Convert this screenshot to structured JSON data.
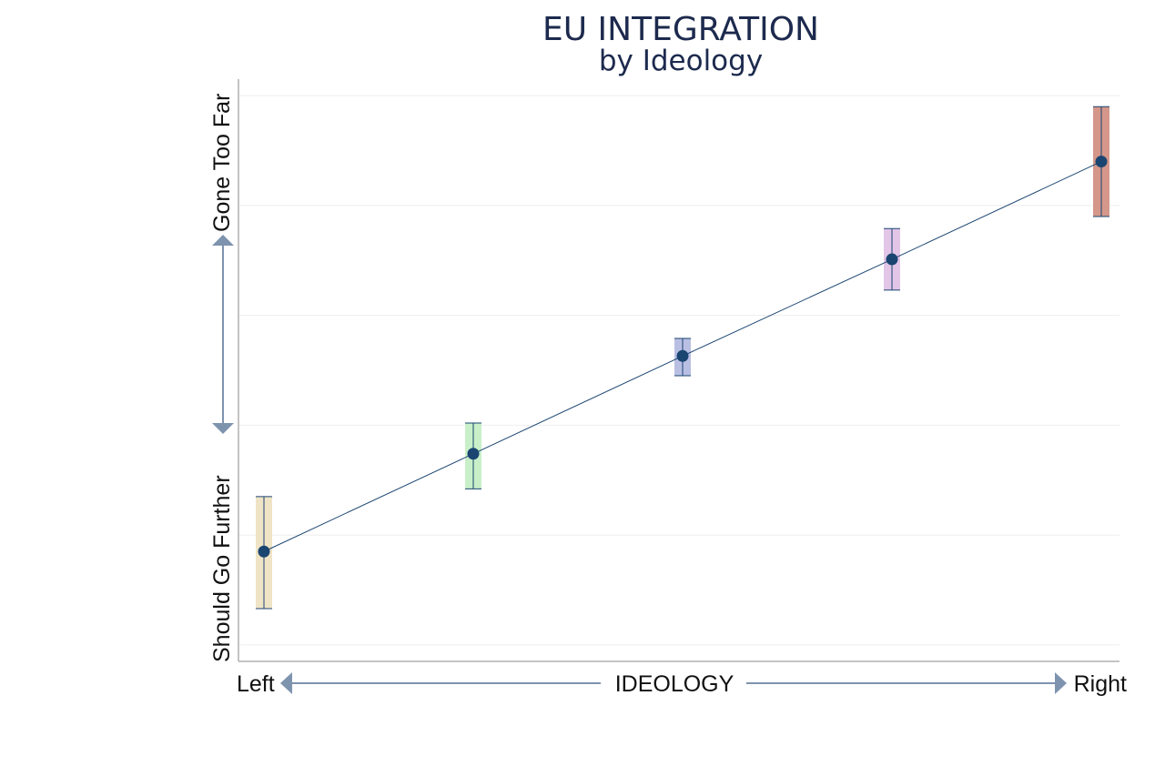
{
  "chart_data": {
    "type": "scatter",
    "title": "EU INTEGRATION",
    "subtitle": "by Ideology",
    "xlabel": "IDEOLOGY",
    "x_left_label": "Left",
    "x_right_label": "Right",
    "y_low_label": "Should Go Further",
    "y_high_label": "Gone Too Far",
    "grid": true,
    "legend": "none",
    "ylim": [
      0,
      5.3
    ],
    "points": [
      {
        "x": 1,
        "y": 1.0,
        "low": 0.48,
        "high": 1.5,
        "color": "#f0e4c6"
      },
      {
        "x": 2,
        "y": 1.89,
        "low": 1.57,
        "high": 2.17,
        "color": "#c8efc8"
      },
      {
        "x": 3,
        "y": 2.78,
        "low": 2.6,
        "high": 2.94,
        "color": "#b9bfe3"
      },
      {
        "x": 4,
        "y": 3.66,
        "low": 3.38,
        "high": 3.94,
        "color": "#e2c5e7"
      },
      {
        "x": 5,
        "y": 4.55,
        "low": 4.05,
        "high": 5.05,
        "color": "#d4978a"
      }
    ],
    "colors": {
      "line": "#1a4571",
      "point": "#1a4571",
      "arrow": "#7e93ae",
      "title": "#1d2a4e",
      "grid": "#eeeeee",
      "axis": "#b0b0b0"
    }
  }
}
